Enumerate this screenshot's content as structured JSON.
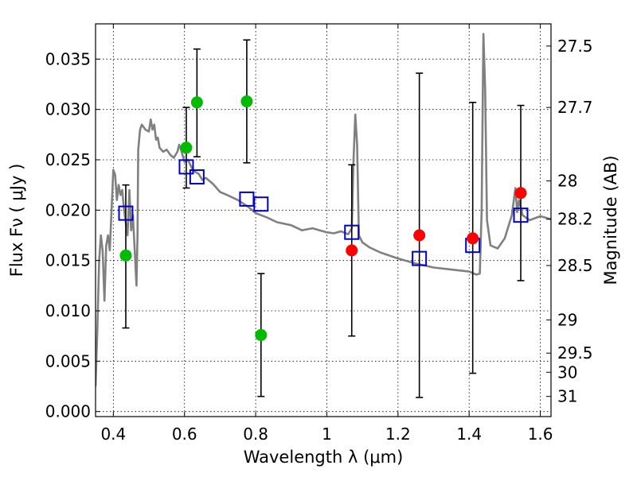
{
  "chart_data": {
    "type": "scatter",
    "xlabel": "Wavelength  λ (μm)",
    "ylabel": "Flux  Fν  ( μJy )",
    "y2label": "Magnitude (AB)",
    "xlim": [
      0.35,
      1.63
    ],
    "ylim": [
      -0.0005,
      0.0385
    ],
    "grid": true,
    "x_ticks": [
      0.4,
      0.6,
      0.8,
      1.0,
      1.2,
      1.4,
      1.6
    ],
    "x_tick_labels": [
      "0.4",
      "0.6",
      "0.8",
      "1",
      "1.2",
      "1.4",
      "1.6"
    ],
    "y_ticks": [
      0.0,
      0.005,
      0.01,
      0.015,
      0.02,
      0.025,
      0.03,
      0.035
    ],
    "y_tick_labels": [
      "0.000",
      "0.005",
      "0.010",
      "0.015",
      "0.020",
      "0.025",
      "0.030",
      "0.035"
    ],
    "mag_ticks": [
      {
        "label": "27.5",
        "flux": 0.0363
      },
      {
        "label": "27.7",
        "flux": 0.0302
      },
      {
        "label": "28",
        "flux": 0.0229
      },
      {
        "label": "28.2",
        "flux": 0.0191
      },
      {
        "label": "28.5",
        "flux": 0.0145
      },
      {
        "label": "29",
        "flux": 0.0091
      },
      {
        "label": "29.5",
        "flux": 0.0058
      },
      {
        "label": "30",
        "flux": 0.0039
      },
      {
        "label": "31",
        "flux": 0.0015
      }
    ],
    "colors": {
      "template": "#808080",
      "green": "#00bb00",
      "red": "#ff0000",
      "model": "#0000cc",
      "errorbar": "#000000"
    },
    "template_spectrum": {
      "x": [
        0.35,
        0.355,
        0.36,
        0.365,
        0.37,
        0.375,
        0.38,
        0.385,
        0.39,
        0.395,
        0.4,
        0.405,
        0.41,
        0.415,
        0.42,
        0.425,
        0.43,
        0.44,
        0.445,
        0.45,
        0.455,
        0.46,
        0.465,
        0.468,
        0.47,
        0.475,
        0.48,
        0.49,
        0.5,
        0.505,
        0.51,
        0.515,
        0.52,
        0.525,
        0.53,
        0.54,
        0.55,
        0.56,
        0.57,
        0.58,
        0.585,
        0.59,
        0.6,
        0.61,
        0.62,
        0.63,
        0.64,
        0.65,
        0.66,
        0.68,
        0.7,
        0.72,
        0.75,
        0.78,
        0.8,
        0.83,
        0.86,
        0.9,
        0.93,
        0.96,
        0.98,
        1.0,
        1.02,
        1.04,
        1.06,
        1.07,
        1.075,
        1.08,
        1.085,
        1.09,
        1.1,
        1.12,
        1.15,
        1.2,
        1.25,
        1.3,
        1.35,
        1.4,
        1.42,
        1.43,
        1.435,
        1.44,
        1.445,
        1.45,
        1.46,
        1.48,
        1.5,
        1.52,
        1.53,
        1.535,
        1.54,
        1.55,
        1.57,
        1.6,
        1.62,
        1.63
      ],
      "y": [
        0.0025,
        0.008,
        0.015,
        0.0175,
        0.016,
        0.011,
        0.0165,
        0.0175,
        0.016,
        0.02,
        0.024,
        0.0235,
        0.021,
        0.0225,
        0.0215,
        0.022,
        0.02,
        0.0175,
        0.022,
        0.018,
        0.0195,
        0.016,
        0.0125,
        0.0175,
        0.026,
        0.028,
        0.0285,
        0.028,
        0.0278,
        0.029,
        0.028,
        0.0285,
        0.027,
        0.0272,
        0.0262,
        0.0258,
        0.026,
        0.0255,
        0.0252,
        0.0258,
        0.0265,
        0.026,
        0.0248,
        0.025,
        0.0242,
        0.0238,
        0.0236,
        0.023,
        0.0232,
        0.0226,
        0.0218,
        0.0215,
        0.021,
        0.0203,
        0.0197,
        0.0193,
        0.0188,
        0.0185,
        0.018,
        0.0182,
        0.018,
        0.0178,
        0.0177,
        0.0179,
        0.0176,
        0.0182,
        0.025,
        0.0295,
        0.0265,
        0.0175,
        0.0168,
        0.0163,
        0.0158,
        0.0152,
        0.0147,
        0.0143,
        0.0141,
        0.0139,
        0.0136,
        0.0137,
        0.02,
        0.0375,
        0.032,
        0.019,
        0.0165,
        0.0162,
        0.0172,
        0.0195,
        0.0222,
        0.0198,
        0.021,
        0.0195,
        0.019,
        0.0194,
        0.0192,
        0.0191
      ]
    },
    "green_points": [
      {
        "x": 0.435,
        "y": 0.0155
      },
      {
        "x": 0.605,
        "y": 0.0262
      },
      {
        "x": 0.635,
        "y": 0.0307
      },
      {
        "x": 0.775,
        "y": 0.0308
      },
      {
        "x": 0.815,
        "y": 0.0076
      }
    ],
    "red_points": [
      {
        "x": 1.07,
        "y": 0.016
      },
      {
        "x": 1.26,
        "y": 0.0175
      },
      {
        "x": 1.41,
        "y": 0.0172
      },
      {
        "x": 1.545,
        "y": 0.0217
      }
    ],
    "model_points": [
      {
        "x": 0.435,
        "y": 0.0197
      },
      {
        "x": 0.605,
        "y": 0.0243
      },
      {
        "x": 0.635,
        "y": 0.0233
      },
      {
        "x": 0.775,
        "y": 0.0211
      },
      {
        "x": 0.815,
        "y": 0.0206
      },
      {
        "x": 1.07,
        "y": 0.0178
      },
      {
        "x": 1.26,
        "y": 0.0152
      },
      {
        "x": 1.41,
        "y": 0.0165
      },
      {
        "x": 1.545,
        "y": 0.0195
      }
    ],
    "error_bars": [
      {
        "x": 0.435,
        "low": 0.0083,
        "high": 0.0225
      },
      {
        "x": 0.605,
        "low": 0.0222,
        "high": 0.0302
      },
      {
        "x": 0.635,
        "low": 0.0253,
        "high": 0.036
      },
      {
        "x": 0.775,
        "low": 0.0247,
        "high": 0.0369
      },
      {
        "x": 0.815,
        "low": 0.0015,
        "high": 0.0137
      },
      {
        "x": 1.07,
        "low": 0.0075,
        "high": 0.0245
      },
      {
        "x": 1.26,
        "low": 0.0014,
        "high": 0.0336
      },
      {
        "x": 1.41,
        "low": 0.0038,
        "high": 0.0307
      },
      {
        "x": 1.545,
        "low": 0.013,
        "high": 0.0304
      }
    ]
  }
}
